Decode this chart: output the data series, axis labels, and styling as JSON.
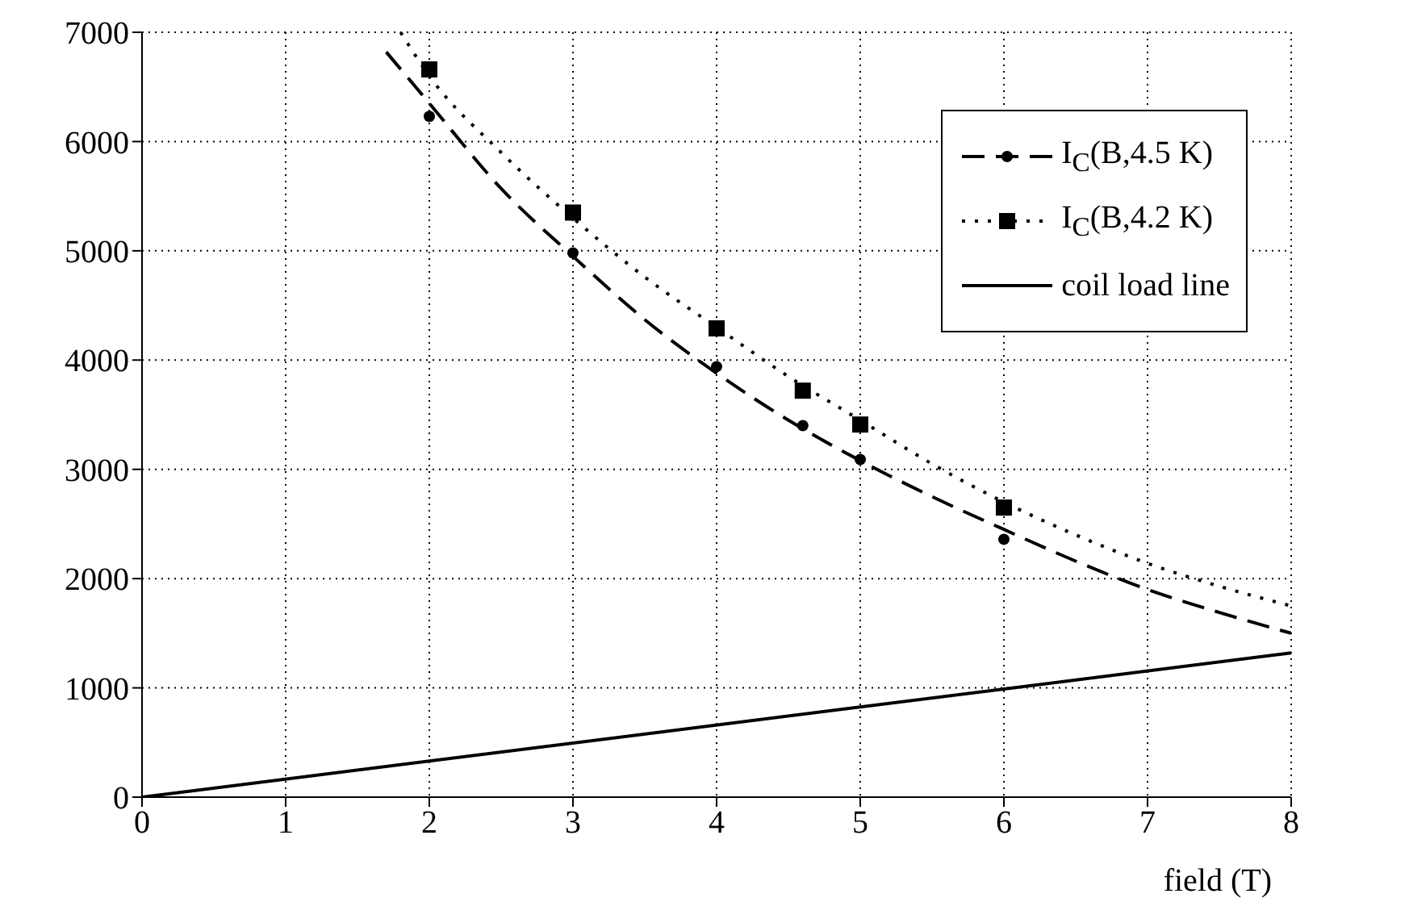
{
  "chart_data": {
    "type": "line",
    "xlabel": "field (T)",
    "xlim": [
      0,
      8
    ],
    "xticks": [
      0,
      1,
      2,
      3,
      4,
      5,
      6,
      7,
      8
    ],
    "ylim": [
      0,
      7000
    ],
    "yticks": [
      0,
      1000,
      2000,
      3000,
      4000,
      5000,
      6000,
      7000
    ],
    "grid": true,
    "legend": "top right",
    "series": [
      {
        "type": "line",
        "color": "#000000",
        "line_style": "dashed",
        "x": [
          1.7,
          2,
          2.5,
          3,
          3.5,
          4,
          4.5,
          5,
          5.5,
          6,
          6.5,
          7,
          7.5,
          8
        ],
        "values": [
          6820,
          6350,
          5570,
          4950,
          4370,
          3880,
          3450,
          3080,
          2750,
          2450,
          2160,
          1900,
          1690,
          1500
        ]
      },
      {
        "type": "scatter",
        "name": "I$_{C}$(B,4.5 K)",
        "color": "#000000",
        "marker": "circle",
        "line_style": "dashed",
        "x": [
          2,
          3,
          4,
          4.6,
          5,
          6
        ],
        "values": [
          6230,
          4980,
          3940,
          3400,
          3090,
          2360
        ]
      },
      {
        "type": "line",
        "color": "#000000",
        "line_style": "dotted",
        "x": [
          1.8,
          2,
          2.5,
          3,
          3.5,
          4,
          4.5,
          5,
          5.5,
          6,
          6.5,
          7,
          7.5,
          8
        ],
        "values": [
          7000,
          6600,
          5900,
          5300,
          4760,
          4300,
          3850,
          3450,
          3050,
          2700,
          2400,
          2140,
          1930,
          1750
        ]
      },
      {
        "type": "scatter",
        "name": "I$_{C}$(B,4.2 K)",
        "color": "#000000",
        "marker": "square",
        "line_style": "dotted",
        "x": [
          2,
          3,
          4,
          4.6,
          5,
          6
        ],
        "values": [
          6660,
          5350,
          4290,
          3720,
          3410,
          2650
        ]
      },
      {
        "type": "line",
        "name": "coil load line",
        "color": "#000000",
        "line_style": "solid",
        "x": [
          0,
          8
        ],
        "values": [
          0,
          1320
        ]
      }
    ]
  }
}
